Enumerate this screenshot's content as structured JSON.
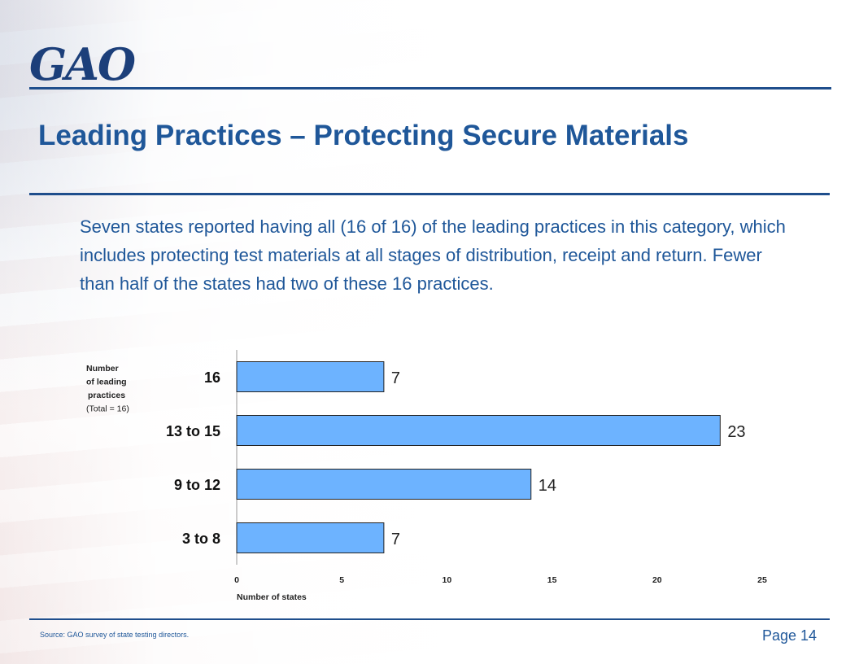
{
  "header": {
    "logo_text": "GAO",
    "title": "Leading Practices – Protecting Secure Materials"
  },
  "body": {
    "paragraph": "Seven states reported having all (16 of 16) of the leading practices in this category, which includes protecting test materials at all stages of distribution, receipt and return. Fewer than half of the states had two of these 16 practices."
  },
  "chart_data": {
    "type": "bar",
    "orientation": "horizontal",
    "categories": [
      "16",
      "13 to 15",
      "9 to 12",
      "3 to 8"
    ],
    "values": [
      7,
      23,
      14,
      7
    ],
    "ylabel_lines": [
      "Number",
      "of leading",
      "practices",
      "(Total = 16)"
    ],
    "xlabel": "Number of states",
    "xlim": [
      0,
      25
    ],
    "xticks": [
      "0",
      "5",
      "10",
      "15",
      "20",
      "25"
    ],
    "bar_color": "#6db3ff",
    "grid": false
  },
  "footer": {
    "source": "Source: GAO survey of state testing directors.",
    "page": "Page 14"
  },
  "colors": {
    "brand_blue": "#1f5799",
    "rule_blue": "#1f4e8c"
  }
}
